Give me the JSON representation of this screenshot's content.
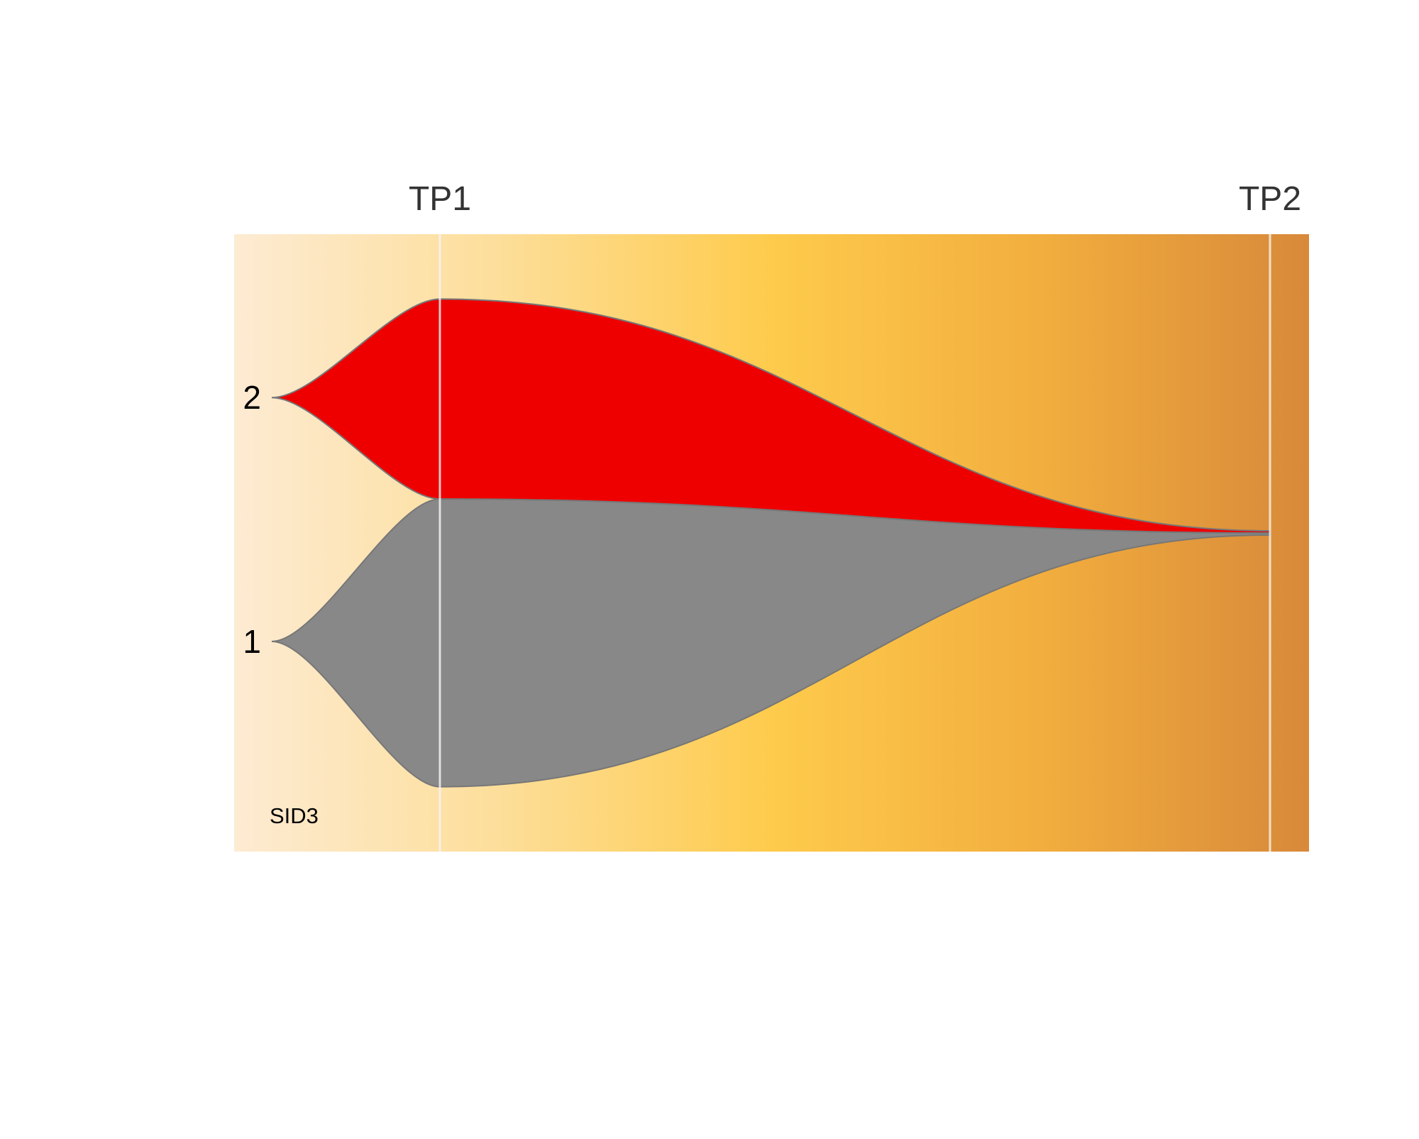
{
  "chart_data": {
    "type": "fishplot",
    "sample": "SID3",
    "timepoints": [
      "TP1",
      "TP2"
    ],
    "clones": [
      {
        "label": "1",
        "color": "#888888",
        "fractions": [
          59,
          0
        ]
      },
      {
        "label": "2",
        "color": "#EE0000",
        "fractions": [
          41,
          0
        ]
      }
    ],
    "background_gradient": [
      "#FDEBD3",
      "#FDDE99",
      "#FECB4C",
      "#F2AE3E",
      "#D8893A"
    ],
    "outline_color": "#777777",
    "timepoint_line_color": "#F5F5F5"
  }
}
